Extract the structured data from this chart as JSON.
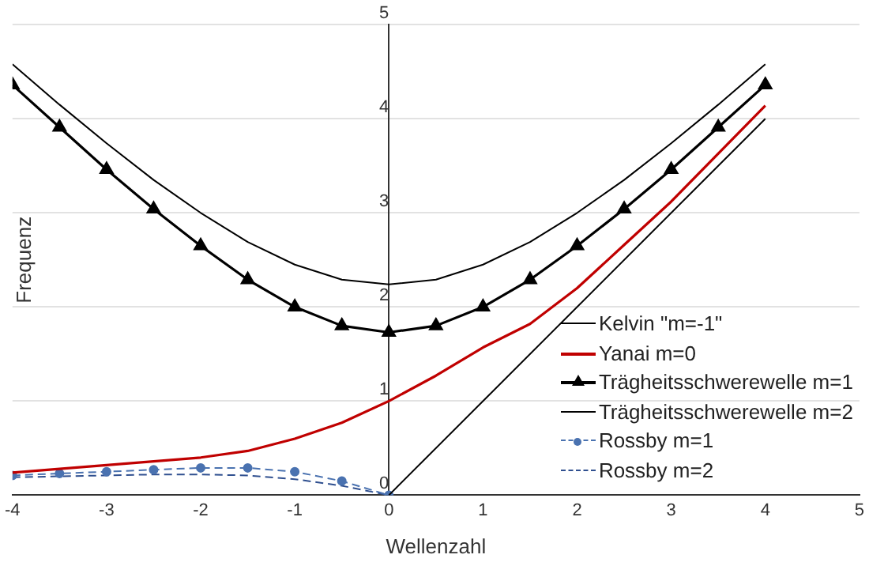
{
  "chart_data": {
    "type": "line",
    "xlabel": "Wellenzahl",
    "ylabel": "Frequenz",
    "xlim": [
      -4,
      5
    ],
    "xticks": [
      -4,
      -3,
      -2,
      -1,
      0,
      1,
      2,
      3,
      4,
      5
    ],
    "ylim": [
      0,
      5
    ],
    "yticks": [
      0,
      1,
      2,
      3,
      4,
      5
    ],
    "grid": "y",
    "legend": "bottom right",
    "series": [
      {
        "name": "Kelvin \"m=-1\"",
        "color": "#000000",
        "x": [
          0,
          4
        ],
        "values": [
          0,
          4
        ],
        "marker": "none",
        "line_style": "solid"
      },
      {
        "name": "Yanai m=0",
        "color": "#c00000",
        "x": [
          -4,
          -2,
          -1.5,
          -1,
          -0.5,
          0,
          0.5,
          1,
          1.5,
          2,
          2.5,
          3,
          4
        ],
        "values": [
          0.24,
          0.4,
          0.47,
          0.6,
          0.77,
          1.0,
          1.27,
          1.57,
          1.82,
          2.2,
          2.66,
          3.12,
          4.14
        ],
        "marker": "none",
        "line_style": "solid"
      },
      {
        "name": "Trägheitsschwerewelle m=1",
        "color": "#000000",
        "x": [
          -4,
          -3.5,
          -3,
          -2.5,
          -2,
          -1.5,
          -1,
          -0.5,
          0,
          0.5,
          1,
          1.5,
          2,
          2.5,
          3,
          3.5,
          4
        ],
        "values": [
          4.36,
          3.91,
          3.46,
          3.04,
          2.65,
          2.29,
          2.0,
          1.8,
          1.73,
          1.8,
          2.0,
          2.29,
          2.65,
          3.04,
          3.46,
          3.91,
          4.36
        ],
        "marker": "triangle",
        "line_style": "solid"
      },
      {
        "name": "Trägheitsschwerewelle m=2",
        "color": "#000000",
        "x": [
          -4,
          -3.5,
          -3,
          -2.5,
          -2,
          -1.5,
          -1,
          -0.5,
          0,
          0.5,
          1,
          1.5,
          2,
          2.5,
          3,
          3.5,
          4
        ],
        "values": [
          4.58,
          4.15,
          3.74,
          3.35,
          3.0,
          2.69,
          2.45,
          2.29,
          2.24,
          2.29,
          2.45,
          2.69,
          3.0,
          3.35,
          3.74,
          4.15,
          4.58
        ],
        "marker": "none",
        "line_style": "solid"
      },
      {
        "name": "Rossby m=1",
        "color": "#4a72b0",
        "x": [
          -4,
          -3.5,
          -3,
          -2.5,
          -2,
          -1.5,
          -1,
          -0.5,
          0
        ],
        "values": [
          0.21,
          0.23,
          0.25,
          0.27,
          0.29,
          0.29,
          0.25,
          0.15,
          0
        ],
        "marker": "circle",
        "line_style": "dashed"
      },
      {
        "name": "Rossby m=2",
        "color": "#2f4f8f",
        "x": [
          -4,
          -3.5,
          -3,
          -2.5,
          -2,
          -1.5,
          -1,
          -0.5,
          0
        ],
        "values": [
          0.19,
          0.2,
          0.21,
          0.22,
          0.22,
          0.21,
          0.17,
          0.1,
          0
        ],
        "marker": "none",
        "line_style": "dashed"
      }
    ]
  }
}
